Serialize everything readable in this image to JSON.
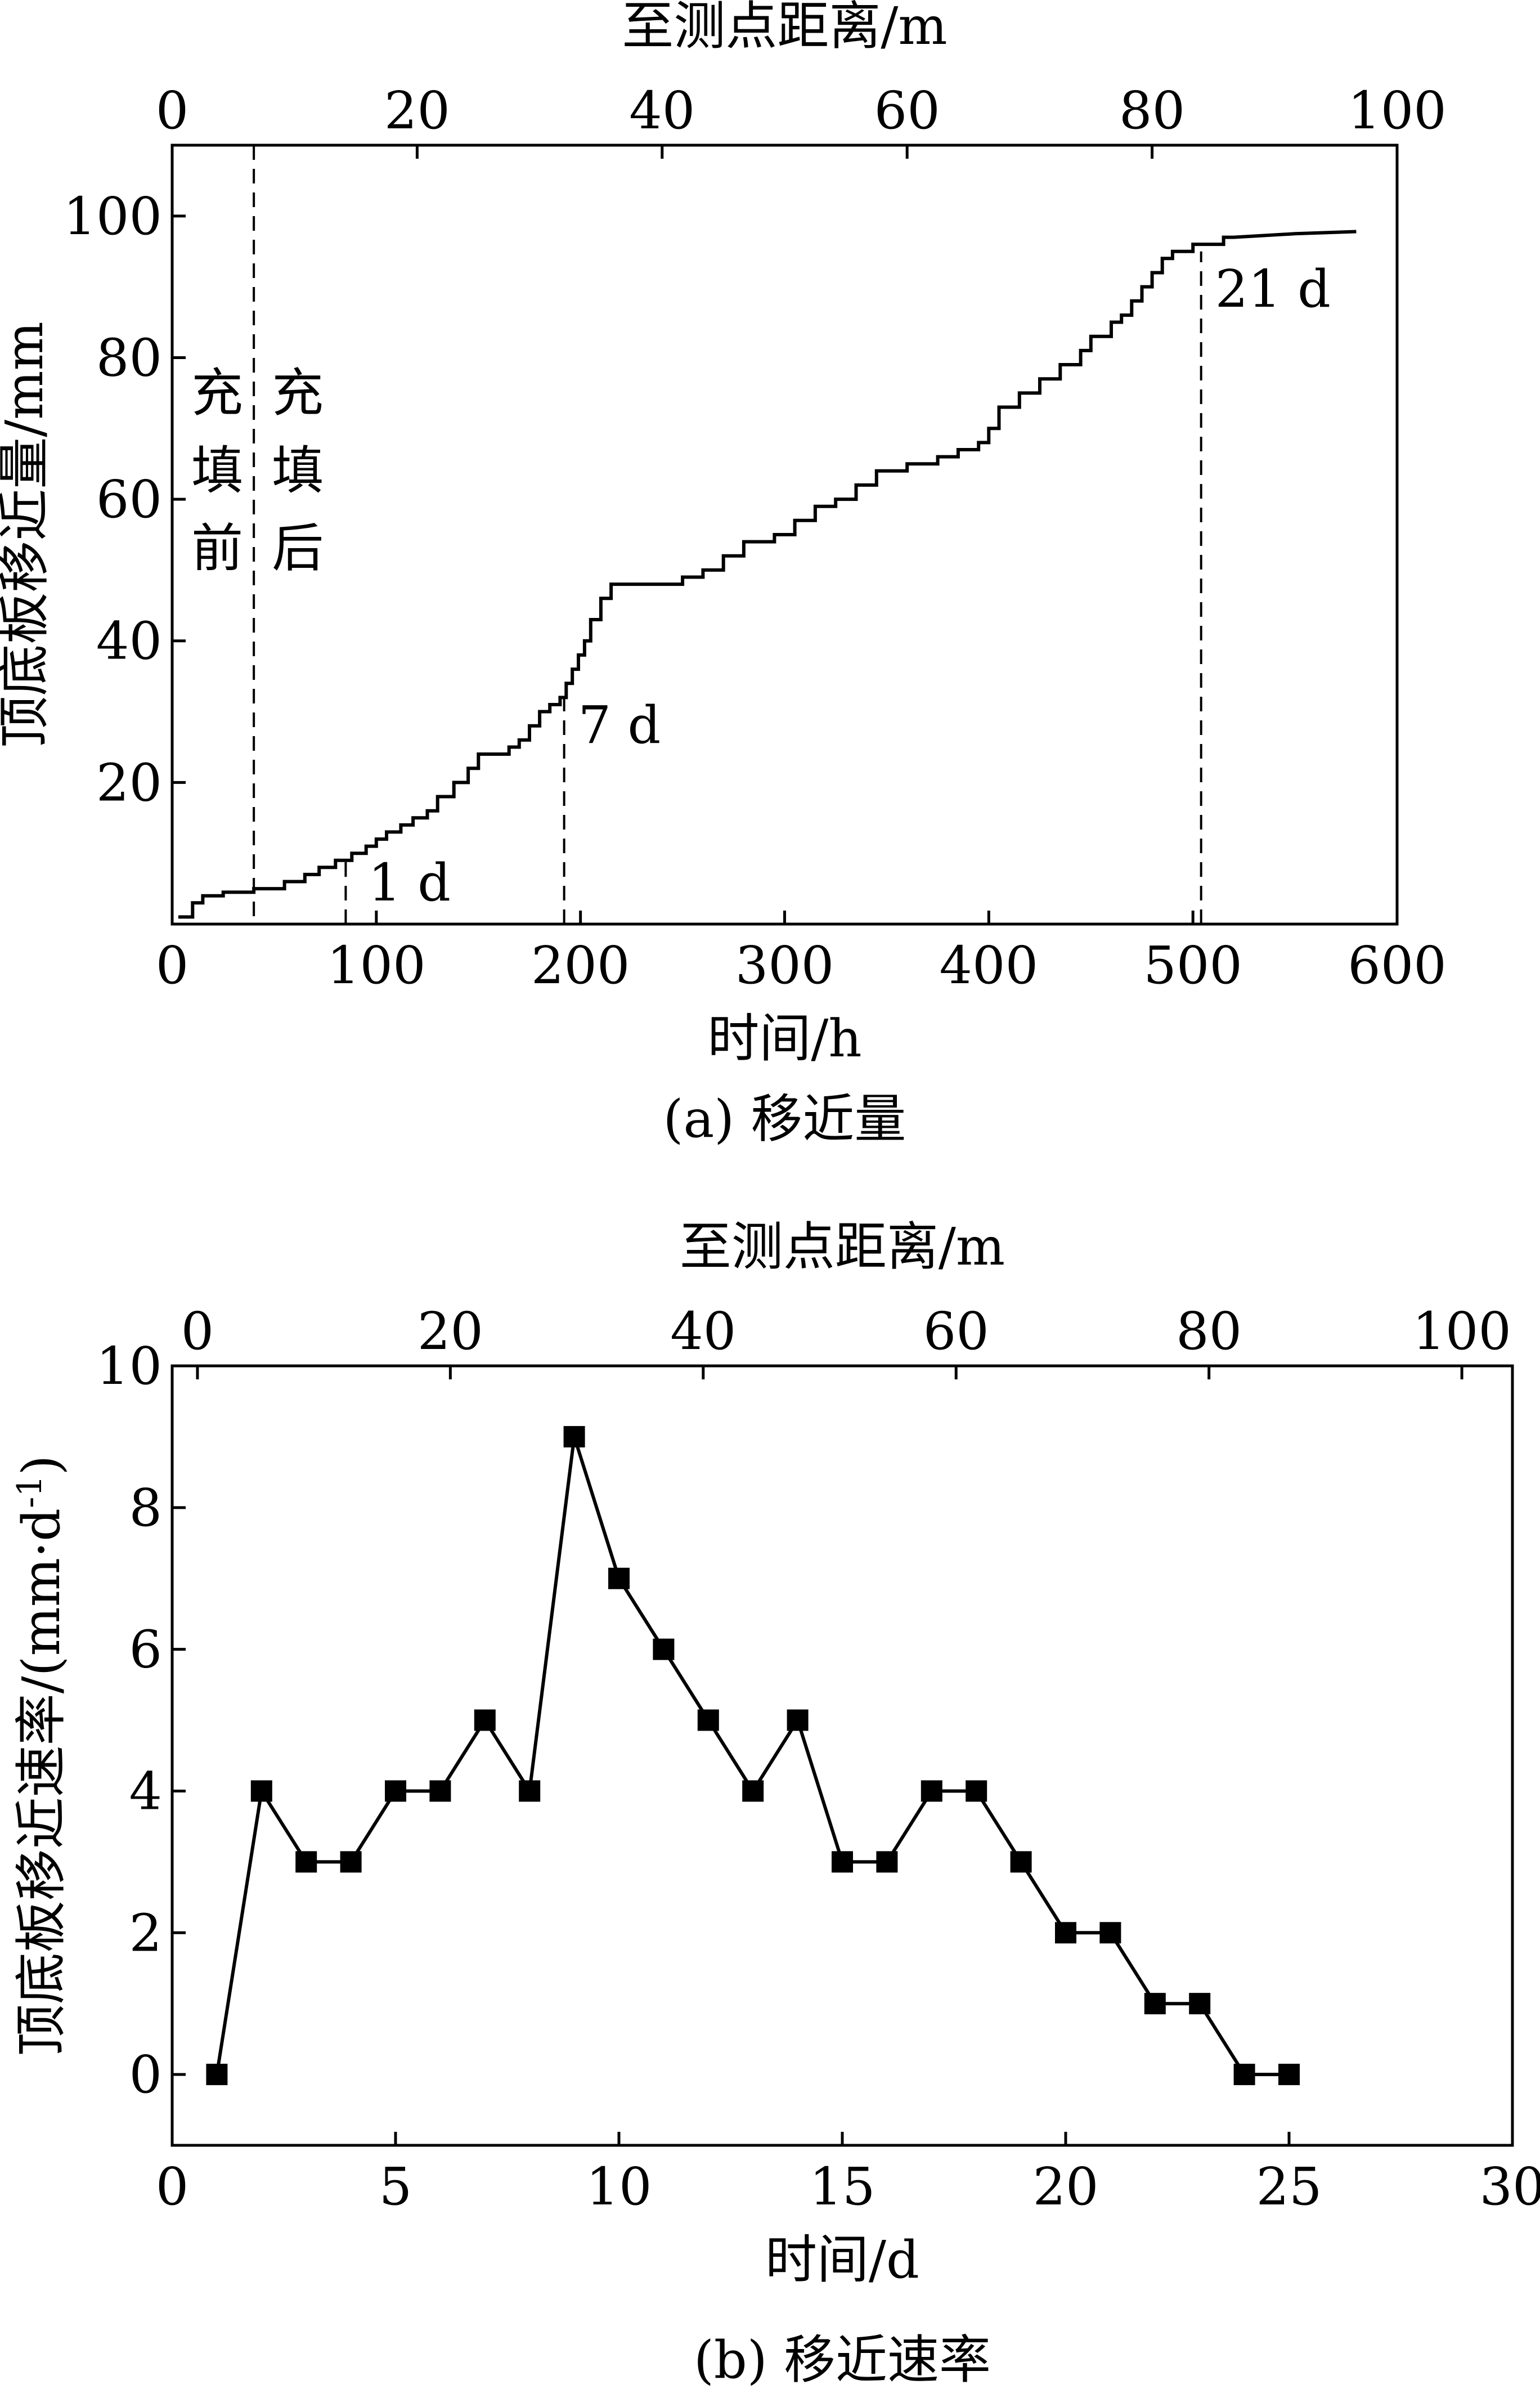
{
  "chart_data": [
    {
      "type": "line",
      "caption": "(a)  移近量",
      "xlabel": "时间/h",
      "ylabel": "顶底板移近量/mm",
      "x2label": "至测点距离/m",
      "xlim": [
        0,
        600
      ],
      "ylim": [
        0,
        110
      ],
      "x2lim": [
        0,
        100
      ],
      "xticks": [
        0,
        100,
        200,
        300,
        400,
        500,
        600
      ],
      "yticks": [
        20,
        40,
        60,
        80,
        100
      ],
      "x2ticks": [
        0,
        20,
        40,
        60,
        80,
        100
      ],
      "grid": false,
      "series": [
        {
          "x": [
            3,
            10,
            10,
            15,
            15,
            25,
            25,
            40,
            40,
            55,
            55,
            65,
            65,
            72,
            72,
            80,
            80,
            88,
            88,
            95,
            95,
            100,
            100,
            105,
            105,
            112,
            112,
            118,
            118,
            125,
            125,
            130,
            130,
            138,
            138,
            145,
            145,
            150,
            150,
            165,
            165,
            170,
            170,
            175,
            175,
            180,
            180,
            185,
            185,
            190,
            190,
            193,
            193,
            196,
            196,
            199,
            199,
            202,
            202,
            205,
            205,
            210,
            210,
            215,
            215,
            220,
            220,
            250,
            250,
            260,
            260,
            270,
            270,
            280,
            280,
            295,
            295,
            305,
            305,
            315,
            315,
            325,
            325,
            335,
            335,
            345,
            345,
            360,
            360,
            375,
            375,
            385,
            385,
            395,
            395,
            400,
            400,
            405,
            405,
            415,
            415,
            425,
            425,
            435,
            435,
            445,
            445,
            450,
            450,
            460,
            460,
            465,
            465,
            470,
            470,
            475,
            475,
            480,
            480,
            485,
            485,
            490,
            490,
            500,
            500,
            515,
            515,
            520,
            550,
            580
          ],
          "y": [
            1,
            1,
            3,
            3,
            4,
            4,
            4.5,
            4.5,
            5,
            5,
            6,
            6,
            7,
            7,
            8,
            8,
            9,
            9,
            10,
            10,
            11,
            11,
            12,
            12,
            13,
            13,
            14,
            14,
            15,
            15,
            16,
            16,
            18,
            18,
            20,
            20,
            22,
            22,
            24,
            24,
            25,
            25,
            26,
            26,
            28,
            28,
            30,
            30,
            31,
            31,
            32,
            32,
            34,
            34,
            36,
            36,
            38,
            38,
            40,
            40,
            43,
            43,
            46,
            46,
            48,
            48,
            48,
            48,
            49,
            49,
            50,
            50,
            52,
            52,
            54,
            54,
            55,
            55,
            57,
            57,
            59,
            59,
            60,
            60,
            62,
            62,
            64,
            64,
            65,
            65,
            66,
            66,
            67,
            67,
            68,
            68,
            70,
            70,
            73,
            73,
            75,
            75,
            77,
            77,
            79,
            79,
            81,
            81,
            83,
            83,
            85,
            85,
            86,
            86,
            88,
            88,
            90,
            90,
            92,
            92,
            94,
            94,
            95,
            95,
            96,
            96,
            97,
            97,
            97.5,
            97.8
          ]
        }
      ],
      "annotations": [
        {
          "text": "1 d",
          "x": 85
        },
        {
          "text": "7 d",
          "x": 192
        },
        {
          "text": "21 d",
          "x": 504
        },
        {
          "text": "充填前",
          "x": 40
        },
        {
          "text": "充填后",
          "x": 40
        }
      ]
    },
    {
      "type": "line",
      "caption": "(b)  移近速率",
      "xlabel": "时间/d",
      "ylabel": "顶底板移近速率/(mm·d",
      "ylabel_sup": "-1",
      "ylabel_tail": ")",
      "x2label": "至测点距离/m",
      "xlim": [
        0,
        30
      ],
      "ylim": [
        -1,
        10
      ],
      "x2lim": [
        -2,
        104
      ],
      "xticks": [
        0,
        5,
        10,
        15,
        20,
        25,
        30
      ],
      "yticks": [
        0,
        2,
        4,
        6,
        8,
        10
      ],
      "x2ticks": [
        0,
        20,
        40,
        60,
        80,
        100
      ],
      "grid": false,
      "marker": "square",
      "series": [
        {
          "x": [
            1,
            2,
            3,
            4,
            5,
            6,
            7,
            8,
            9,
            10,
            11,
            12,
            13,
            14,
            15,
            16,
            17,
            18,
            19,
            20,
            21,
            22,
            23,
            24,
            25
          ],
          "y": [
            0,
            4,
            3,
            3,
            4,
            4,
            5,
            4,
            9,
            7,
            6,
            5,
            4,
            5,
            3,
            3,
            4,
            4,
            3,
            2,
            2,
            1,
            1,
            0,
            0
          ]
        }
      ]
    }
  ]
}
